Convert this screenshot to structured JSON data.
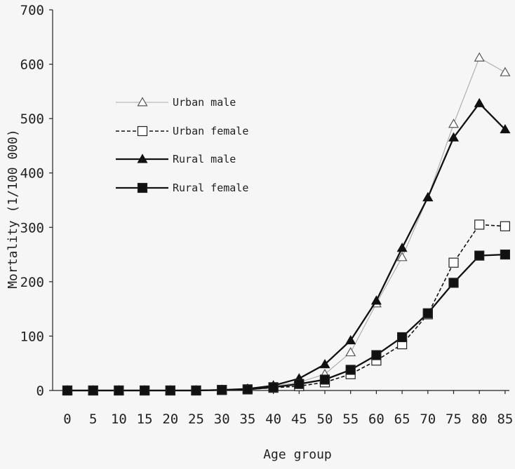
{
  "chart_data": {
    "type": "line",
    "title": "",
    "xlabel": "Age group",
    "ylabel": "Mortality (1/100 000)",
    "categories": [
      "0",
      "5",
      "10",
      "15",
      "20",
      "25",
      "30",
      "35",
      "40",
      "45",
      "50",
      "55",
      "60",
      "65",
      "70",
      "75",
      "80",
      "85"
    ],
    "ylim": [
      0,
      700
    ],
    "yticks": [
      0,
      100,
      200,
      300,
      400,
      500,
      600,
      700
    ],
    "grid": false,
    "legend_position": "top-left",
    "series": [
      {
        "name": "Urban male",
        "marker": "triangle-open",
        "line": "solid-thin",
        "color": "#aaaaaa",
        "values": [
          0,
          0,
          0,
          0,
          0,
          0,
          1,
          3,
          8,
          15,
          30,
          70,
          160,
          245,
          355,
          490,
          612,
          585
        ]
      },
      {
        "name": "Urban female",
        "marker": "square-open",
        "line": "dashed",
        "color": "#111111",
        "values": [
          0,
          0,
          0,
          0,
          0,
          0,
          1,
          2,
          5,
          8,
          15,
          30,
          55,
          85,
          140,
          235,
          305,
          302
        ]
      },
      {
        "name": "Rural male",
        "marker": "triangle-filled",
        "line": "solid-thick",
        "color": "#111111",
        "values": [
          0,
          0,
          0,
          0,
          0,
          0,
          1,
          3,
          9,
          22,
          48,
          92,
          165,
          262,
          355,
          465,
          528,
          480
        ]
      },
      {
        "name": "Rural female",
        "marker": "square-filled",
        "line": "solid-thick",
        "color": "#111111",
        "values": [
          0,
          0,
          0,
          0,
          0,
          0,
          1,
          2,
          6,
          12,
          20,
          38,
          65,
          98,
          142,
          198,
          248,
          250
        ]
      }
    ]
  }
}
